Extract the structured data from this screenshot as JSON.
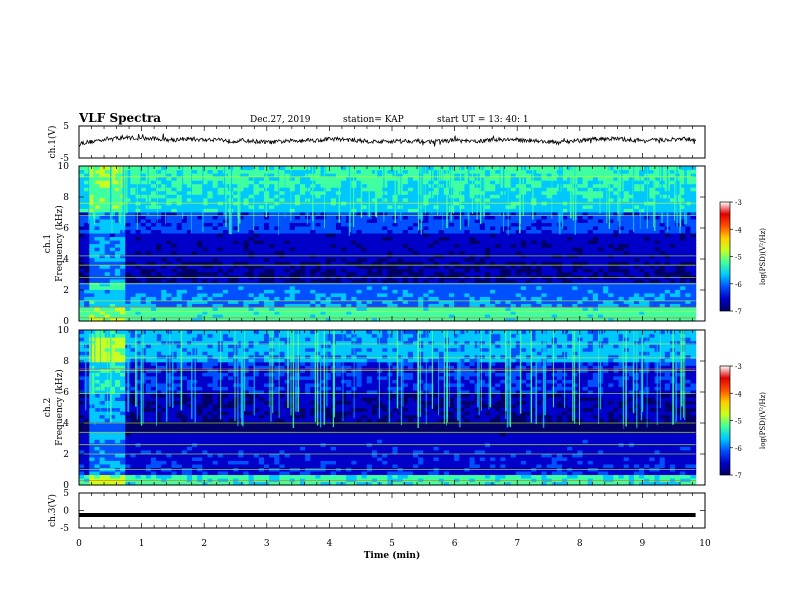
{
  "header": {
    "title": "VLF Spectra",
    "date": "Dec.27, 2019",
    "station": "station= KAP",
    "start": "start UT = 13: 40: 1"
  },
  "labels": {
    "ch1": "ch.1(V)",
    "ch3": "ch.3(V)",
    "spec1": [
      "ch.1",
      "Frequency (kHz)"
    ],
    "spec2": [
      "ch.2",
      "Frequency (kHz)"
    ],
    "xlabel": "Time (min)",
    "colorbar": "log(PSD)(V²/Hz)"
  },
  "colors": {
    "colormap": [
      "#000066",
      "#0000c8",
      "#0050ff",
      "#00c8ff",
      "#40ffa0",
      "#c8ff20",
      "#ffd000",
      "#ff5000",
      "#e00000",
      "#ffffff"
    ]
  },
  "chart_data": [
    {
      "type": "line",
      "panel": "ch.1 waveform",
      "ylabel": "ch.1(V)",
      "xlim": [
        0,
        10
      ],
      "ylim": [
        -5,
        5
      ],
      "yticks": [
        5,
        -5
      ],
      "approx_level_v": [
        -0.4,
        0.1,
        0.9,
        1.2,
        1.4,
        1.0,
        1.1,
        0.7,
        0.9,
        1.0,
        0.6,
        0.9,
        0.3,
        0.5,
        0.2,
        -0.1,
        0.1,
        0.4,
        0.7,
        0.5,
        1.0,
        0.8,
        0.5,
        0.2,
        0.1,
        0.3,
        0.4,
        0.2,
        0.1,
        0.3,
        0.6,
        0.1,
        0.3,
        0.7,
        0.8,
        0.6,
        0.5,
        0.1,
        -0.2,
        0.3,
        0.5,
        0.9,
        1.1,
        0.9,
        0.6,
        0.4,
        0.6,
        0.7,
        0.9,
        0.8
      ]
    },
    {
      "type": "heatmap",
      "panel": "ch.1 spectrogram",
      "ylabel": "Frequency (kHz)",
      "xlim": [
        0,
        10
      ],
      "ylim": [
        0,
        10
      ],
      "yticks": [
        0,
        2,
        4,
        6,
        8,
        10
      ],
      "colorbar_range": [
        -7,
        -3
      ],
      "colorbar_ticks": [
        -3,
        -4,
        -5,
        -6,
        -7
      ]
    },
    {
      "type": "heatmap",
      "panel": "ch.2 spectrogram",
      "ylabel": "Frequency (kHz)",
      "xlim": [
        0,
        10
      ],
      "ylim": [
        0,
        10
      ],
      "yticks": [
        0,
        2,
        4,
        6,
        8,
        10
      ],
      "colorbar_range": [
        -7,
        -3
      ],
      "colorbar_ticks": [
        -3,
        -4,
        -5,
        -6,
        -7
      ]
    },
    {
      "type": "line",
      "panel": "ch.3 waveform",
      "ylabel": "ch.3(V)",
      "xlim": [
        0,
        10
      ],
      "ylim": [
        -5,
        5
      ],
      "yticks": [
        5,
        0,
        -5
      ],
      "level_v": -1.3
    }
  ],
  "xaxis": {
    "label": "Time (min)",
    "ticks": [
      0,
      1,
      2,
      3,
      4,
      5,
      6,
      7,
      8,
      9,
      10
    ],
    "data_end_min": 9.85
  }
}
